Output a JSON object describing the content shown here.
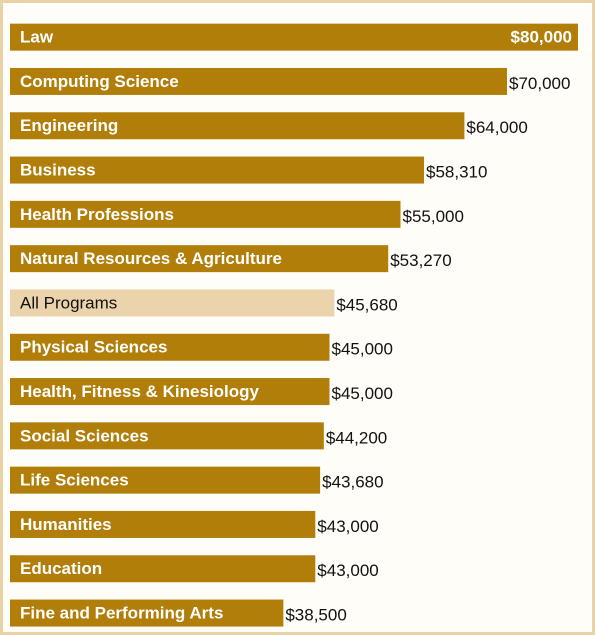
{
  "chart_data": {
    "type": "hbar",
    "categories": [
      "Law",
      "Computing Science",
      "Engineering",
      "Business",
      "Health Professions",
      "Natural Resources & Agriculture",
      "All Programs",
      "Physical Sciences",
      "Health, Fitness & Kinesiology",
      "Social Sciences",
      "Life Sciences",
      "Humanities",
      "Education",
      "Fine and Performing Arts"
    ],
    "values": [
      80000,
      70000,
      64000,
      58310,
      55000,
      53270,
      45680,
      45000,
      45000,
      44200,
      43680,
      43000,
      43000,
      38500
    ],
    "value_labels": [
      "$80,000",
      "$70,000",
      "$64,000",
      "$58,310",
      "$55,000",
      "$53,270",
      "$45,680",
      "$45,000",
      "$45,000",
      "$44,200",
      "$43,680",
      "$43,000",
      "$43,000",
      "$38,500"
    ],
    "colors": [
      "#b27e0a",
      "#b27e0a",
      "#b27e0a",
      "#b27e0a",
      "#b27e0a",
      "#b27e0a",
      "#ebd3ab",
      "#b27e0a",
      "#b27e0a",
      "#b27e0a",
      "#b27e0a",
      "#b27e0a",
      "#b27e0a",
      "#b27e0a"
    ],
    "xlim": [
      0,
      80000
    ]
  }
}
